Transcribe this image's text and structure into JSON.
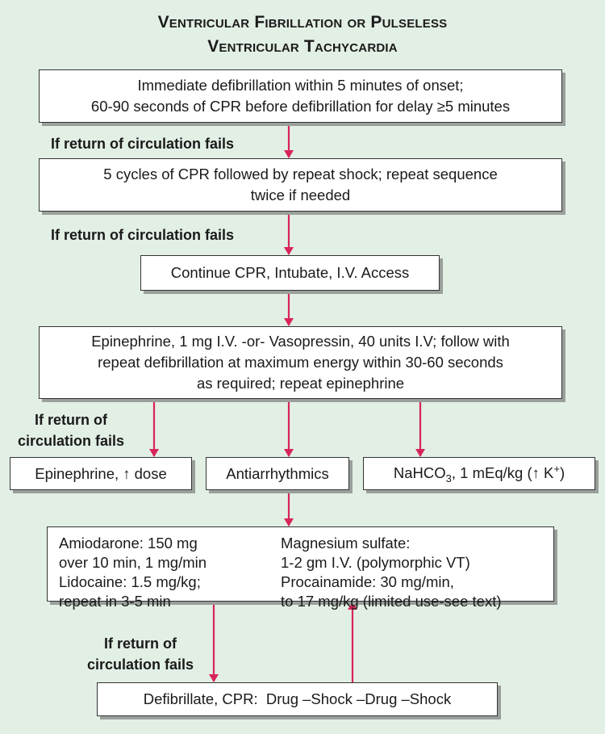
{
  "title": [
    "Ventricular Fibrillation or Pulseless",
    "Ventricular Tachycardia"
  ],
  "colors": {
    "arrow": "#d8245a",
    "background": "#e2efe5",
    "box": "#ffffff"
  },
  "fail_label": "If return of circulation fails",
  "fail_label_split": [
    "If return of",
    "circulation fails"
  ],
  "steps": {
    "defib": [
      "Immediate defibrillation within 5 minutes of onset;",
      "60-90 seconds of CPR before defibrillation for delay ≥5 minutes"
    ],
    "cpr_cycles": [
      "5 cycles of CPR followed by repeat shock; repeat sequence",
      "twice if needed"
    ],
    "continue": "Continue CPR, Intubate, I.V. Access",
    "epi": [
      "Epinephrine, 1 mg I.V. -or- Vasopressin, 40 units I.V; follow with",
      "repeat defibrillation at maximum energy within 30-60 seconds",
      "as required; repeat epinephrine"
    ],
    "epi_dose": "Epinephrine, ↑ dose",
    "antiarrhythmics": "Antiarrhythmics",
    "nahco3": {
      "prefix": "NaHCO",
      "sub": "3",
      "rest": ", 1 mEq/kg (↑ K",
      "sup": "+",
      "end": ")"
    },
    "drugs_left": [
      "Amiodarone: 150 mg",
      "over 10 min, 1 mg/min",
      "Lidocaine: 1.5 mg/kg;",
      "repeat in 3-5 min"
    ],
    "drugs_right": [
      "Magnesium sulfate:",
      "1-2 gm I.V. (polymorphic VT)",
      "Procainamide: 30 mg/min,",
      "to 17 mg/kg (limited use-see text)"
    ],
    "final": "Defibrillate, CPR:  Drug –Shock –Drug –Shock"
  }
}
